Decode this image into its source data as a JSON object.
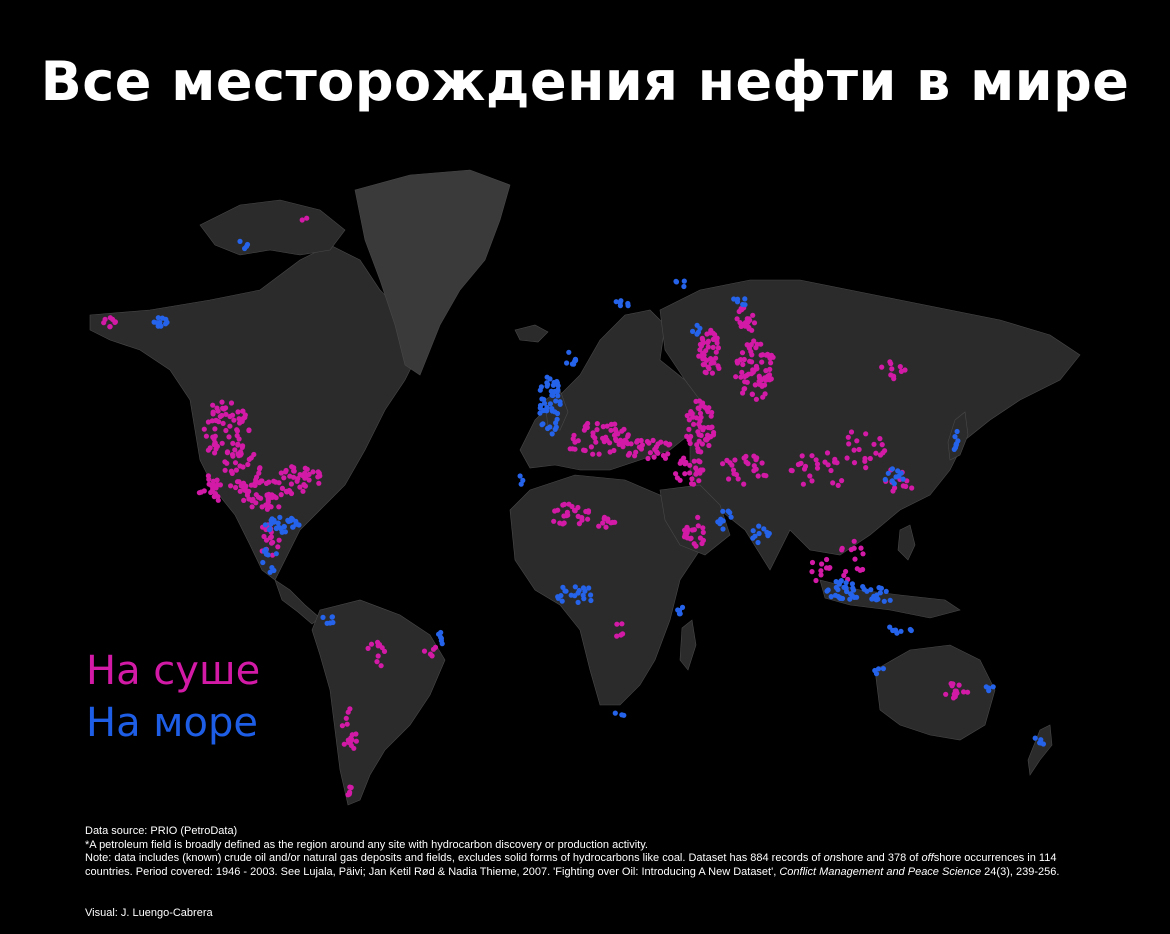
{
  "title": "Все месторождения нефти в мире",
  "legend": {
    "onshore": {
      "label": "На суше",
      "color": "#d21aa7"
    },
    "offshore": {
      "label": "На море",
      "color": "#1e5ee6"
    }
  },
  "colors": {
    "background": "#000000",
    "land": "#2b2b2b",
    "greenland": "#3a3a3a",
    "border": "#4a4a4a",
    "onshore": "#d21aa7",
    "offshore": "#2563eb"
  },
  "notes": {
    "source": "Data source: PRIO (PetroData)",
    "definition": "*A petroleum field is broadly defined as the region around any site with hydrocarbon discovery or production activity.",
    "note_1": "Note: data includes (known) crude oil and/or natural gas deposits and fields, excludes solid forms of hydrocarbons like coal. Dataset has 884 records of ",
    "note_onshore_word": "on",
    "note_2": "shore and 378 of ",
    "note_offshore_word": "off",
    "note_3": "shore occurrences in 114 countries. Period covered: 1946 - 2003. See Lujala, Päivi; Jan Ketil Rød & Nadia Thieme, 2007. 'Fighting over Oil: Introducing A New Dataset', ",
    "journal": "Conflict Management and Peace Science",
    "citation_end": " 24(3), 239-256.",
    "visual": "Visual: J. Luengo-Cabrera"
  }
}
